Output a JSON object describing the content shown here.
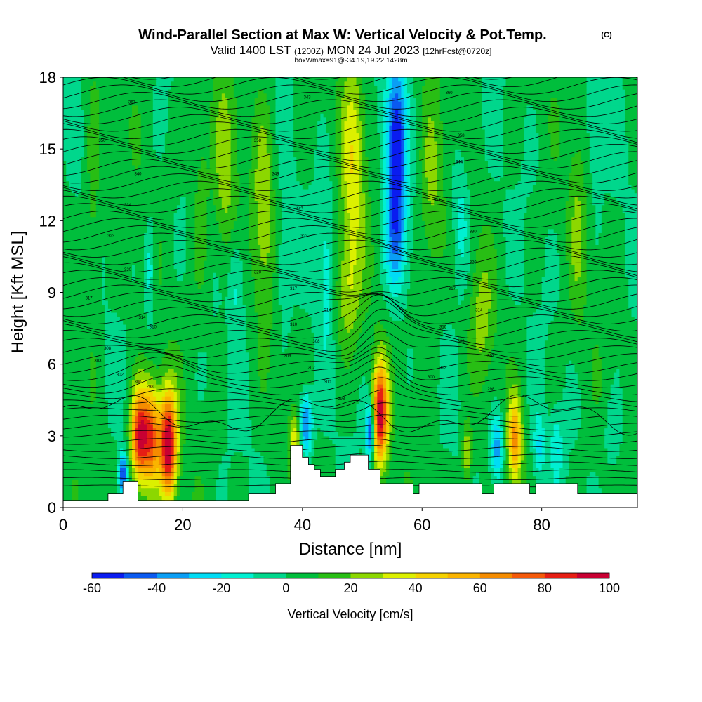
{
  "chart_data": {
    "type": "heatmap",
    "title": "Wind-Parallel Section at Max W: Vertical Velocity & Pot.Temp.",
    "title_mark": "(C)",
    "subtitle": {
      "valid": "Valid 1400 LST",
      "utc": "(1200Z)",
      "date": "MON 24 Jul 2023",
      "forecast": "[12hrFcst@0720z]"
    },
    "box_info": "boxWmax=91@-34.19,19.22,1428m",
    "xlabel": "Distance [nm]",
    "ylabel": "Height [Kft MSL]",
    "xlim": [
      0,
      96
    ],
    "ylim": [
      0,
      18
    ],
    "x_ticks": [
      "0",
      "20",
      "40",
      "60",
      "80"
    ],
    "y_ticks": [
      "0",
      "3",
      "6",
      "9",
      "12",
      "15",
      "18"
    ],
    "colorbar": {
      "label": "Vertical Velocity [cm/s]",
      "tick_labels": [
        "-60",
        "-40",
        "-20",
        "0",
        "20",
        "40",
        "60",
        "80",
        "100"
      ],
      "levels": [
        -60,
        -50,
        -40,
        -30,
        -20,
        -10,
        0,
        10,
        20,
        30,
        40,
        50,
        60,
        70,
        80,
        90,
        100
      ],
      "colors": [
        "#0a1cf0",
        "#0a5af0",
        "#0a9ef5",
        "#00dcf5",
        "#00f0d2",
        "#00d78c",
        "#00be3c",
        "#28be14",
        "#8cd700",
        "#dcf000",
        "#f5d200",
        "#fab400",
        "#f58c00",
        "#f55a0a",
        "#e61e14",
        "#c80032"
      ]
    },
    "terrain": [
      [
        0,
        0.3
      ],
      [
        7.5,
        0.3
      ],
      [
        7.5,
        0.6
      ],
      [
        10,
        0.6
      ],
      [
        10,
        1.1
      ],
      [
        12.5,
        1.1
      ],
      [
        12.5,
        0.3
      ],
      [
        31,
        0.3
      ],
      [
        31,
        0.6
      ],
      [
        35.5,
        0.6
      ],
      [
        35.5,
        1
      ],
      [
        38,
        1
      ],
      [
        38,
        2.6
      ],
      [
        40,
        2.6
      ],
      [
        40,
        2.1
      ],
      [
        41,
        2.1
      ],
      [
        41,
        1.8
      ],
      [
        42,
        1.8
      ],
      [
        42,
        1.6
      ],
      [
        43,
        1.6
      ],
      [
        43,
        1.3
      ],
      [
        45.5,
        1.3
      ],
      [
        45.5,
        1.6
      ],
      [
        47,
        1.6
      ],
      [
        47,
        1.9
      ],
      [
        48,
        1.9
      ],
      [
        48,
        2.2
      ],
      [
        51,
        2.2
      ],
      [
        51,
        1.6
      ],
      [
        53,
        1.6
      ],
      [
        53,
        1
      ],
      [
        58.5,
        1
      ],
      [
        58.5,
        0.6
      ],
      [
        59.5,
        0.6
      ],
      [
        59.5,
        1
      ],
      [
        70,
        1
      ],
      [
        70,
        0.6
      ],
      [
        72,
        0.6
      ],
      [
        72,
        1
      ],
      [
        78,
        1
      ],
      [
        78,
        0.6
      ],
      [
        79,
        0.6
      ],
      [
        79,
        1
      ],
      [
        86,
        1
      ],
      [
        86,
        0.6
      ],
      [
        96,
        0.6
      ]
    ],
    "updrafts": [
      {
        "x": 12.5,
        "z": 3.0,
        "peak": 70,
        "sx": 0.9,
        "sz": 1.4
      },
      {
        "x": 14.5,
        "z": 3.0,
        "peak": 80,
        "sx": 1.2,
        "sz": 1.5
      },
      {
        "x": 17.6,
        "z": 2.6,
        "peak": 95,
        "sx": 1.0,
        "sz": 1.6
      },
      {
        "x": 10.0,
        "z": 1.4,
        "peak": -55,
        "sx": 0.5,
        "sz": 0.6
      },
      {
        "x": 38.8,
        "z": 2.8,
        "peak": 35,
        "sx": 0.7,
        "sz": 0.8
      },
      {
        "x": 40.5,
        "z": 3.5,
        "peak": -50,
        "sx": 0.8,
        "sz": 0.9
      },
      {
        "x": 51.3,
        "z": 3.2,
        "peak": -60,
        "sx": 0.5,
        "sz": 0.8
      },
      {
        "x": 53.0,
        "z": 3.9,
        "peak": 92,
        "sx": 0.9,
        "sz": 1.5
      },
      {
        "x": 55.6,
        "z": 15.0,
        "peak": -60,
        "sx": 1.2,
        "sz": 2.6
      },
      {
        "x": 55.6,
        "z": 11.0,
        "peak": -28,
        "sx": 1.3,
        "sz": 1.6
      },
      {
        "x": 48.5,
        "z": 14.5,
        "peak": 32,
        "sx": 1.4,
        "sz": 3.0
      },
      {
        "x": 47.5,
        "z": 9.0,
        "peak": 24,
        "sx": 1.5,
        "sz": 1.8
      },
      {
        "x": 75.5,
        "z": 2.8,
        "peak": 58,
        "sx": 0.8,
        "sz": 1.3
      },
      {
        "x": 72.5,
        "z": 2.5,
        "peak": -40,
        "sx": 0.8,
        "sz": 1.0
      },
      {
        "x": 67.5,
        "z": 2.2,
        "peak": 30,
        "sx": 0.6,
        "sz": 0.9
      },
      {
        "x": 79.5,
        "z": 2.5,
        "peak": -25,
        "sx": 0.7,
        "sz": 1.0
      },
      {
        "x": 82.5,
        "z": 2.5,
        "peak": -20,
        "sx": 0.7,
        "sz": 1.0
      },
      {
        "x": 27.0,
        "z": 14.0,
        "peak": 22,
        "sx": 1.4,
        "sz": 2.8
      },
      {
        "x": 33.5,
        "z": 12.5,
        "peak": 24,
        "sx": 1.2,
        "sz": 3.0
      },
      {
        "x": 23.0,
        "z": 13.0,
        "peak": 15,
        "sx": 1.0,
        "sz": 3.0
      },
      {
        "x": 14.5,
        "z": 10.0,
        "peak": -22,
        "sx": 0.6,
        "sz": 1.6
      },
      {
        "x": 29.0,
        "z": 9.5,
        "peak": -18,
        "sx": 0.9,
        "sz": 1.6
      },
      {
        "x": 61.5,
        "z": 13.0,
        "peak": 20,
        "sx": 1.4,
        "sz": 3.0
      },
      {
        "x": 70.0,
        "z": 8.0,
        "peak": 18,
        "sx": 1.4,
        "sz": 2.0
      },
      {
        "x": 66.5,
        "z": 12.0,
        "peak": -20,
        "sx": 1.0,
        "sz": 2.0
      },
      {
        "x": 5.0,
        "z": 12.5,
        "peak": 14,
        "sx": 0.9,
        "sz": 4.0
      },
      {
        "x": 86.0,
        "z": 12.0,
        "peak": 14,
        "sx": 1.0,
        "sz": 3.0
      },
      {
        "x": 37.0,
        "z": 10.0,
        "peak": -15,
        "sx": 1.0,
        "sz": 2.0
      },
      {
        "x": 44.0,
        "z": 10.0,
        "peak": -18,
        "sx": 0.9,
        "sz": 2.4
      },
      {
        "x": 92.0,
        "z": 3.0,
        "peak": -15,
        "sx": 1.0,
        "sz": 1.2
      },
      {
        "x": 89.0,
        "z": 16.0,
        "peak": -14,
        "sx": 1.0,
        "sz": 2.0
      }
    ],
    "isentrope_labels": [
      {
        "text": "367",
        "x": 11.5,
        "z": 16.9
      },
      {
        "text": "343",
        "x": 40.8,
        "z": 17.1
      },
      {
        "text": "360",
        "x": 64.5,
        "z": 17.3
      },
      {
        "text": "350",
        "x": 6.5,
        "z": 15.3
      },
      {
        "text": "358",
        "x": 32.5,
        "z": 15.3
      },
      {
        "text": "358",
        "x": 66.5,
        "z": 15.5
      },
      {
        "text": "340",
        "x": 12.5,
        "z": 13.9
      },
      {
        "text": "349",
        "x": 35.5,
        "z": 13.9
      },
      {
        "text": "344",
        "x": 66.2,
        "z": 14.4
      },
      {
        "text": "334",
        "x": 10.8,
        "z": 12.6
      },
      {
        "text": "334",
        "x": 39.5,
        "z": 12.5
      },
      {
        "text": "334",
        "x": 62.5,
        "z": 12.8
      },
      {
        "text": "323",
        "x": 8,
        "z": 11.3
      },
      {
        "text": "323",
        "x": 40.3,
        "z": 11.3
      },
      {
        "text": "330",
        "x": 68.5,
        "z": 11.5
      },
      {
        "text": "320",
        "x": 10.8,
        "z": 9.9
      },
      {
        "text": "320",
        "x": 32.5,
        "z": 9.8
      },
      {
        "text": "320",
        "x": 68.5,
        "z": 10.2
      },
      {
        "text": "317",
        "x": 4.3,
        "z": 8.7
      },
      {
        "text": "317",
        "x": 38.5,
        "z": 9.1
      },
      {
        "text": "317",
        "x": 65,
        "z": 9.1
      },
      {
        "text": "314",
        "x": 13.2,
        "z": 7.9
      },
      {
        "text": "314",
        "x": 44.2,
        "z": 8.2
      },
      {
        "text": "314",
        "x": 69.5,
        "z": 8.2
      },
      {
        "text": "310",
        "x": 15,
        "z": 7.5
      },
      {
        "text": "310",
        "x": 38.5,
        "z": 7.6
      },
      {
        "text": "310",
        "x": 63.5,
        "z": 7.5
      },
      {
        "text": "308",
        "x": 7.4,
        "z": 6.6
      },
      {
        "text": "308",
        "x": 42.3,
        "z": 6.9
      },
      {
        "text": "308",
        "x": 66.5,
        "z": 6.9
      },
      {
        "text": "303",
        "x": 5.8,
        "z": 6.1
      },
      {
        "text": "303",
        "x": 37.5,
        "z": 6.3
      },
      {
        "text": "303",
        "x": 71.5,
        "z": 6.3
      },
      {
        "text": "302",
        "x": 9.5,
        "z": 5.5
      },
      {
        "text": "302",
        "x": 41.5,
        "z": 5.8
      },
      {
        "text": "302",
        "x": 63.5,
        "z": 5.8
      },
      {
        "text": "300",
        "x": 12.5,
        "z": 5.2
      },
      {
        "text": "300",
        "x": 44.2,
        "z": 5.2
      },
      {
        "text": "300",
        "x": 61.5,
        "z": 5.4
      },
      {
        "text": "298",
        "x": 14.5,
        "z": 5.0
      },
      {
        "text": "298",
        "x": 46.5,
        "z": 4.5
      },
      {
        "text": "298",
        "x": 71.5,
        "z": 4.9
      }
    ]
  }
}
